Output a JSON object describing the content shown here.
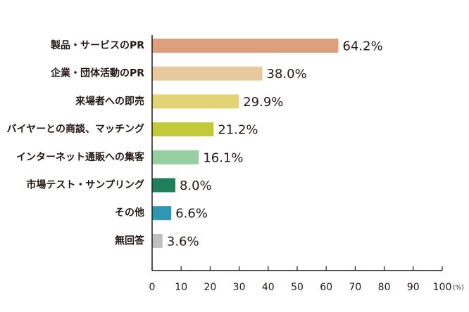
{
  "chart_data": {
    "type": "bar",
    "orientation": "horizontal",
    "categories": [
      "製品・サービスのPR",
      "企業・団体活動のPR",
      "来場者への即売",
      "バイヤーとの商談、マッチング",
      "インターネット通販への集客",
      "市場テスト・サンプリング",
      "その他",
      "無回答"
    ],
    "values": [
      64.2,
      38.0,
      29.9,
      21.2,
      16.1,
      8.0,
      6.6,
      3.6
    ],
    "value_labels": [
      "64.2%",
      "38.0%",
      "29.9%",
      "21.2%",
      "16.1%",
      "8.0%",
      "6.6%",
      "3.6%"
    ],
    "colors": [
      "#dea07c",
      "#e8c99d",
      "#e2d474",
      "#c2c93a",
      "#97cfa3",
      "#1f7f5d",
      "#3097b3",
      "#c0c0c0"
    ],
    "xlim": [
      0,
      100
    ],
    "xticks": [
      0,
      10,
      20,
      30,
      40,
      50,
      60,
      70,
      80,
      90,
      100
    ],
    "x_unit": "(%)",
    "title": "",
    "xlabel": "",
    "ylabel": "",
    "grid": false,
    "legend": "none"
  }
}
